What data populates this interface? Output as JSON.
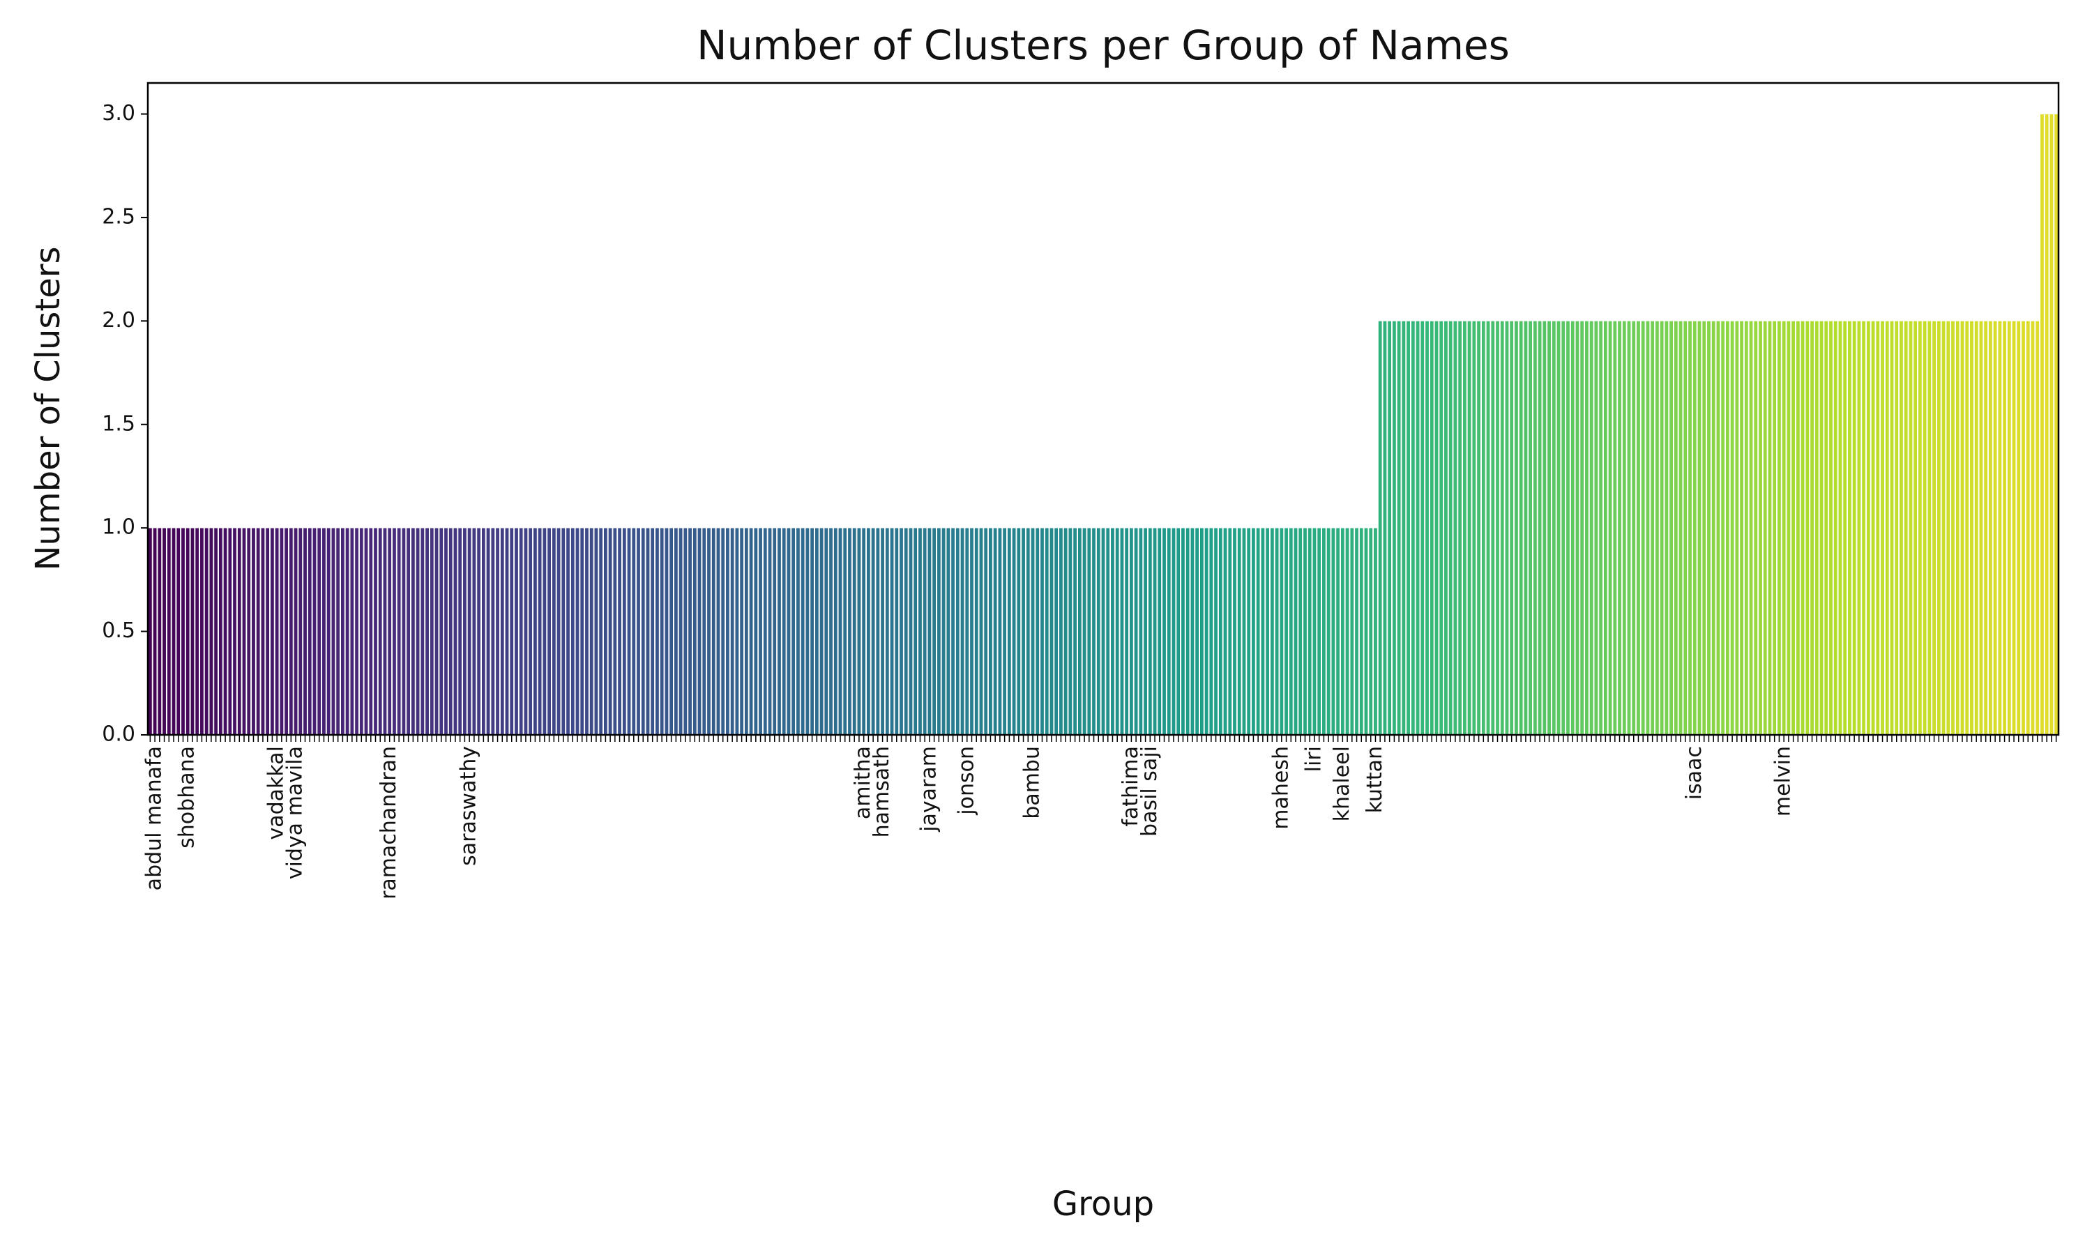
{
  "chart_data": {
    "type": "bar",
    "title": "Number of Clusters per Group of Names",
    "xlabel": "Group",
    "ylabel": "Number of Clusters",
    "colormap": [
      "#440154",
      "#482878",
      "#3e4989",
      "#31688e",
      "#26828e",
      "#1f9e89",
      "#35b779",
      "#6ece58",
      "#b5de2b",
      "#e3dc2a"
    ],
    "ylim": [
      0,
      3.15
    ],
    "yticks": [
      {
        "value": 0,
        "label": "0.0"
      },
      {
        "value": 0.5,
        "label": "0.5"
      },
      {
        "value": 1,
        "label": "1.0"
      },
      {
        "value": 1.5,
        "label": "1.5"
      },
      {
        "value": 2,
        "label": "2.0"
      },
      {
        "value": 2.5,
        "label": "2.5"
      },
      {
        "value": 3,
        "label": "3.0"
      }
    ],
    "categories": [
      null,
      "abdul manafa",
      null,
      null,
      null,
      null,
      null,
      null,
      "shobhana",
      null,
      null,
      null,
      null,
      null,
      null,
      null,
      null,
      null,
      null,
      null,
      null,
      null,
      null,
      null,
      null,
      null,
      null,
      "vadakkal",
      null,
      null,
      null,
      "vidya mavila",
      null,
      null,
      null,
      null,
      null,
      null,
      null,
      null,
      null,
      null,
      null,
      null,
      null,
      null,
      null,
      null,
      null,
      null,
      null,
      "ramachandran",
      null,
      null,
      null,
      null,
      null,
      null,
      null,
      null,
      null,
      null,
      null,
      null,
      null,
      null,
      null,
      null,
      "saraswathy",
      null,
      null,
      null,
      null,
      null,
      null,
      null,
      null,
      null,
      null,
      null,
      null,
      null,
      null,
      null,
      null,
      null,
      null,
      null,
      null,
      null,
      null,
      null,
      null,
      null,
      null,
      null,
      null,
      null,
      null,
      null,
      null,
      null,
      null,
      null,
      null,
      null,
      null,
      null,
      null,
      null,
      null,
      null,
      null,
      null,
      null,
      null,
      null,
      null,
      null,
      null,
      null,
      null,
      null,
      null,
      null,
      null,
      null,
      null,
      null,
      null,
      null,
      null,
      null,
      null,
      null,
      null,
      null,
      null,
      null,
      null,
      null,
      null,
      null,
      null,
      null,
      null,
      null,
      null,
      null,
      null,
      null,
      null,
      "amitha",
      null,
      null,
      null,
      "hamsath",
      null,
      null,
      null,
      null,
      null,
      null,
      null,
      null,
      null,
      "jayaram",
      null,
      null,
      null,
      null,
      null,
      null,
      null,
      "jonson",
      null,
      null,
      null,
      null,
      null,
      null,
      null,
      null,
      null,
      null,
      null,
      null,
      null,
      "bambu",
      null,
      null,
      null,
      null,
      null,
      null,
      null,
      null,
      null,
      null,
      null,
      null,
      null,
      null,
      null,
      null,
      null,
      null,
      null,
      null,
      "fathima",
      null,
      null,
      null,
      "basil saji",
      null,
      null,
      null,
      null,
      null,
      null,
      null,
      null,
      null,
      null,
      null,
      null,
      null,
      null,
      null,
      null,
      null,
      null,
      null,
      null,
      null,
      null,
      null,
      null,
      null,
      null,
      null,
      "mahesh",
      null,
      null,
      null,
      null,
      null,
      null,
      "liri",
      null,
      null,
      null,
      null,
      null,
      "khaleel",
      null,
      null,
      null,
      null,
      null,
      null,
      "kuttan",
      null,
      null,
      null,
      null,
      null,
      null,
      null,
      null,
      null,
      null,
      null,
      null,
      null,
      null,
      null,
      null,
      null,
      null,
      null,
      null,
      null,
      null,
      null,
      null,
      null,
      null,
      null,
      null,
      null,
      null,
      null,
      null,
      null,
      null,
      null,
      null,
      null,
      null,
      null,
      null,
      null,
      null,
      null,
      null,
      null,
      null,
      null,
      null,
      null,
      null,
      null,
      null,
      null,
      null,
      null,
      null,
      null,
      null,
      null,
      null,
      null,
      null,
      null,
      null,
      null,
      null,
      null,
      "isaac",
      null,
      null,
      null,
      null,
      null,
      null,
      null,
      null,
      null,
      null,
      null,
      null,
      null,
      null,
      null,
      null,
      null,
      null,
      "melvin",
      null,
      null,
      null,
      null,
      null,
      null,
      null,
      null,
      null,
      null,
      null,
      null,
      null,
      null,
      null,
      null,
      null,
      null,
      null,
      null,
      null,
      null,
      null,
      null,
      null,
      null,
      null,
      null,
      null,
      null,
      null,
      null,
      null,
      null,
      null,
      null,
      null,
      null,
      null,
      null,
      null,
      null,
      null,
      null,
      null,
      null,
      null,
      null,
      null,
      null,
      null,
      null,
      null,
      null,
      null,
      null,
      null,
      null
    ],
    "values": [
      1,
      1,
      1,
      1,
      1,
      1,
      1,
      1,
      1,
      1,
      1,
      1,
      1,
      1,
      1,
      1,
      1,
      1,
      1,
      1,
      1,
      1,
      1,
      1,
      1,
      1,
      1,
      1,
      1,
      1,
      1,
      1,
      1,
      1,
      1,
      1,
      1,
      1,
      1,
      1,
      1,
      1,
      1,
      1,
      1,
      1,
      1,
      1,
      1,
      1,
      1,
      1,
      1,
      1,
      1,
      1,
      1,
      1,
      1,
      1,
      1,
      1,
      1,
      1,
      1,
      1,
      1,
      1,
      1,
      1,
      1,
      1,
      1,
      1,
      1,
      1,
      1,
      1,
      1,
      1,
      1,
      1,
      1,
      1,
      1,
      1,
      1,
      1,
      1,
      1,
      1,
      1,
      1,
      1,
      1,
      1,
      1,
      1,
      1,
      1,
      1,
      1,
      1,
      1,
      1,
      1,
      1,
      1,
      1,
      1,
      1,
      1,
      1,
      1,
      1,
      1,
      1,
      1,
      1,
      1,
      1,
      1,
      1,
      1,
      1,
      1,
      1,
      1,
      1,
      1,
      1,
      1,
      1,
      1,
      1,
      1,
      1,
      1,
      1,
      1,
      1,
      1,
      1,
      1,
      1,
      1,
      1,
      1,
      1,
      1,
      1,
      1,
      1,
      1,
      1,
      1,
      1,
      1,
      1,
      1,
      1,
      1,
      1,
      1,
      1,
      1,
      1,
      1,
      1,
      1,
      1,
      1,
      1,
      1,
      1,
      1,
      1,
      1,
      1,
      1,
      1,
      1,
      1,
      1,
      1,
      1,
      1,
      1,
      1,
      1,
      1,
      1,
      1,
      1,
      1,
      1,
      1,
      1,
      1,
      1,
      1,
      1,
      1,
      1,
      1,
      1,
      1,
      1,
      1,
      1,
      1,
      1,
      1,
      1,
      1,
      1,
      1,
      1,
      1,
      1,
      1,
      1,
      1,
      1,
      1,
      1,
      1,
      1,
      1,
      1,
      1,
      1,
      1,
      1,
      1,
      1,
      1,
      1,
      1,
      1,
      1,
      1,
      1,
      1,
      1,
      1,
      1,
      1,
      1,
      1,
      1,
      1,
      1,
      1,
      1,
      1,
      1,
      1,
      1,
      1,
      1,
      1,
      2,
      2,
      2,
      2,
      2,
      2,
      2,
      2,
      2,
      2,
      2,
      2,
      2,
      2,
      2,
      2,
      2,
      2,
      2,
      2,
      2,
      2,
      2,
      2,
      2,
      2,
      2,
      2,
      2,
      2,
      2,
      2,
      2,
      2,
      2,
      2,
      2,
      2,
      2,
      2,
      2,
      2,
      2,
      2,
      2,
      2,
      2,
      2,
      2,
      2,
      2,
      2,
      2,
      2,
      2,
      2,
      2,
      2,
      2,
      2,
      2,
      2,
      2,
      2,
      2,
      2,
      2,
      2,
      2,
      2,
      2,
      2,
      2,
      2,
      2,
      2,
      2,
      2,
      2,
      2,
      2,
      2,
      2,
      2,
      2,
      2,
      2,
      2,
      2,
      2,
      2,
      2,
      2,
      2,
      2,
      2,
      2,
      2,
      2,
      2,
      2,
      2,
      2,
      2,
      2,
      2,
      2,
      2,
      2,
      2,
      2,
      2,
      2,
      2,
      2,
      2,
      2,
      2,
      2,
      2,
      2,
      2,
      2,
      2,
      2,
      2,
      2,
      2,
      2,
      2,
      2,
      2,
      2,
      2,
      2,
      2,
      2,
      2,
      2,
      2,
      2,
      3,
      3,
      3,
      3
    ]
  }
}
